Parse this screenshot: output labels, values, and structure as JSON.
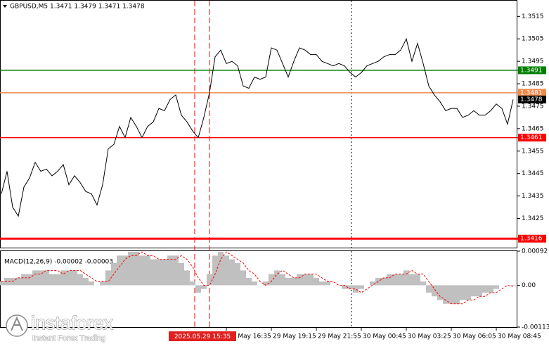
{
  "chart_data": [
    {
      "type": "line",
      "title": "GBPUSD,M5  1.3471 1.3479 1.3471 1.3478",
      "color": "#000000",
      "categories": [
        null,
        null,
        null,
        null,
        null,
        null,
        null,
        null,
        null,
        null,
        null,
        null,
        null,
        null,
        null,
        null,
        null,
        null,
        null,
        null,
        null,
        null,
        null,
        null,
        null,
        null,
        null,
        null,
        null,
        null,
        null,
        null,
        null,
        null,
        null,
        null,
        null,
        null,
        null,
        null,
        "29 May 16:35",
        null,
        null,
        null,
        null,
        null,
        null,
        null,
        "29 May 19:15",
        null,
        null,
        null,
        null,
        null,
        null,
        null,
        "29 May 21:55",
        null,
        null,
        null,
        null,
        null,
        null,
        null,
        "30 May 00:45",
        null,
        null,
        null,
        null,
        null,
        null,
        null,
        "30 May 03:25",
        null,
        null,
        null,
        null,
        null,
        null,
        null,
        "30 May 06:05",
        null,
        null,
        null,
        null,
        null,
        null,
        null,
        "30 May 08:45",
        null,
        null,
        null
      ],
      "values": [
        1.3436,
        1.3446,
        1.343,
        1.3426,
        1.3439,
        1.3443,
        1.345,
        1.3446,
        1.3447,
        1.3444,
        1.3446,
        1.3449,
        1.344,
        1.3444,
        1.3441,
        1.3437,
        1.3436,
        1.3431,
        1.344,
        1.3456,
        1.3458,
        1.3466,
        1.3461,
        1.347,
        1.3466,
        1.3461,
        1.3466,
        1.3468,
        1.3474,
        1.3473,
        1.3478,
        1.348,
        1.3471,
        1.3468,
        1.3464,
        1.3461,
        1.347,
        1.3481,
        1.3497,
        1.35,
        1.3494,
        1.3495,
        1.3493,
        1.3484,
        1.3483,
        1.3488,
        1.3487,
        1.3488,
        1.3501,
        1.35,
        1.3494,
        1.3488,
        1.3495,
        1.3501,
        1.35,
        1.3498,
        1.3498,
        1.3495,
        1.3494,
        1.3493,
        1.3494,
        1.3493,
        1.349,
        1.3488,
        1.349,
        1.3493,
        1.3494,
        1.3495,
        1.3497,
        1.3498,
        1.3498,
        1.35,
        1.3505,
        1.3495,
        1.3503,
        1.3494,
        1.3484,
        1.348,
        1.3477,
        1.3473,
        1.3474,
        1.3474,
        1.347,
        1.3471,
        1.3473,
        1.3471,
        1.3471,
        1.3473,
        1.3476,
        1.3474,
        1.3467,
        1.3478
      ],
      "ylim": [
        1.3412,
        1.3522
      ],
      "yticks": [
        1.3515,
        1.3505,
        1.3495,
        1.3485,
        1.3475,
        1.3465,
        1.3455,
        1.3445,
        1.3435,
        1.3425
      ],
      "levels": [
        {
          "value": 1.3491,
          "color": "#008000"
        },
        {
          "value": 1.3481,
          "color": "#f08a4b"
        },
        {
          "value": 1.3461,
          "color": "#ff0000"
        },
        {
          "value": 1.3416,
          "color": "#ff0000"
        }
      ],
      "annotation": "2025.05.29 15:35"
    },
    {
      "type": "macd",
      "title": "MACD(12,26,9) -0.00002 -0.00003",
      "color": "#c0c0c0",
      "signal_color": "#ff0000",
      "values": [
        0.0001,
        0.0002,
        0.0002,
        0.0002,
        0.0003,
        0.0003,
        0.0004,
        0.0004,
        0.0004,
        0.0003,
        0.0003,
        0.0004,
        0.0004,
        0.0004,
        0.0003,
        0.0002,
        0.0001,
        0,
        0.0001,
        0.0004,
        0.0006,
        0.0008,
        0.0008,
        0.0009,
        0.0009,
        0.0008,
        0.0008,
        0.0007,
        0.0007,
        0.0007,
        0.0008,
        0.0008,
        0.0006,
        0.0004,
        0.0001,
        -0.0002,
        -0.0001,
        0.0003,
        0.0008,
        0.0009,
        0.0008,
        0.0007,
        0.0006,
        0.0004,
        0.0002,
        0.0001,
        0,
        0.0001,
        0.0003,
        0.0004,
        0.0003,
        0.0002,
        0.0002,
        0.0003,
        0.0003,
        0.0003,
        0.0002,
        0.0001,
        0.0001,
        0,
        0,
        -0.0001,
        -0.0001,
        -0.0002,
        -0.0001,
        0,
        0.0001,
        0.0002,
        0.0002,
        0.0003,
        0.0003,
        0.0003,
        0.0004,
        0.0003,
        0.0003,
        0.0001,
        -0.0002,
        -0.0003,
        -0.0004,
        -0.0005,
        -0.0005,
        -0.0005,
        -0.0004,
        -0.0004,
        -0.0003,
        -0.0003,
        -0.0002,
        -0.0002,
        -0.0001,
        0,
        0,
        -2e-05
      ],
      "signal": [
        0.0001,
        0.0001,
        0.0001,
        0.0002,
        0.0002,
        0.0002,
        0.0003,
        0.0003,
        0.0004,
        0.0004,
        0.0004,
        0.0003,
        0.0004,
        0.0004,
        0.0004,
        0.0003,
        0.0002,
        0.0001,
        0.0001,
        0.0001,
        0.0003,
        0.0005,
        0.0007,
        0.0008,
        0.0008,
        0.0009,
        0.0008,
        0.0008,
        0.0007,
        0.0007,
        0.0007,
        0.0007,
        0.0008,
        0.0007,
        0.0005,
        0.0002,
        0,
        0,
        0.0003,
        0.0007,
        0.0009,
        0.0008,
        0.0007,
        0.0006,
        0.0004,
        0.0003,
        0.0001,
        0,
        0.0001,
        0.0003,
        0.0004,
        0.0003,
        0.0002,
        0.0002,
        0.0003,
        0.0003,
        0.0003,
        0.0002,
        0.0001,
        0.0001,
        0,
        0,
        -0.0001,
        -0.0001,
        -0.0002,
        -0.0001,
        0,
        0.0001,
        0.0002,
        0.0002,
        0.0003,
        0.0003,
        0.0003,
        0.0004,
        0.0003,
        0.0003,
        0.0001,
        -0.0001,
        -0.0003,
        -0.0004,
        -0.0005,
        -0.0005,
        -0.0005,
        -0.0004,
        -0.0004,
        -0.0003,
        -0.0003,
        -0.0002,
        -0.0002,
        -0.0001,
        0,
        -3e-05
      ],
      "ylim": [
        -0.00113,
        0.00092
      ],
      "yticks": [
        0.00092,
        {
          "value": 0,
          "label": "0.00"
        },
        -0.00113
      ]
    }
  ],
  "watermark": {
    "brand": "instaforex",
    "slogan": "Instant Forex Trading"
  }
}
